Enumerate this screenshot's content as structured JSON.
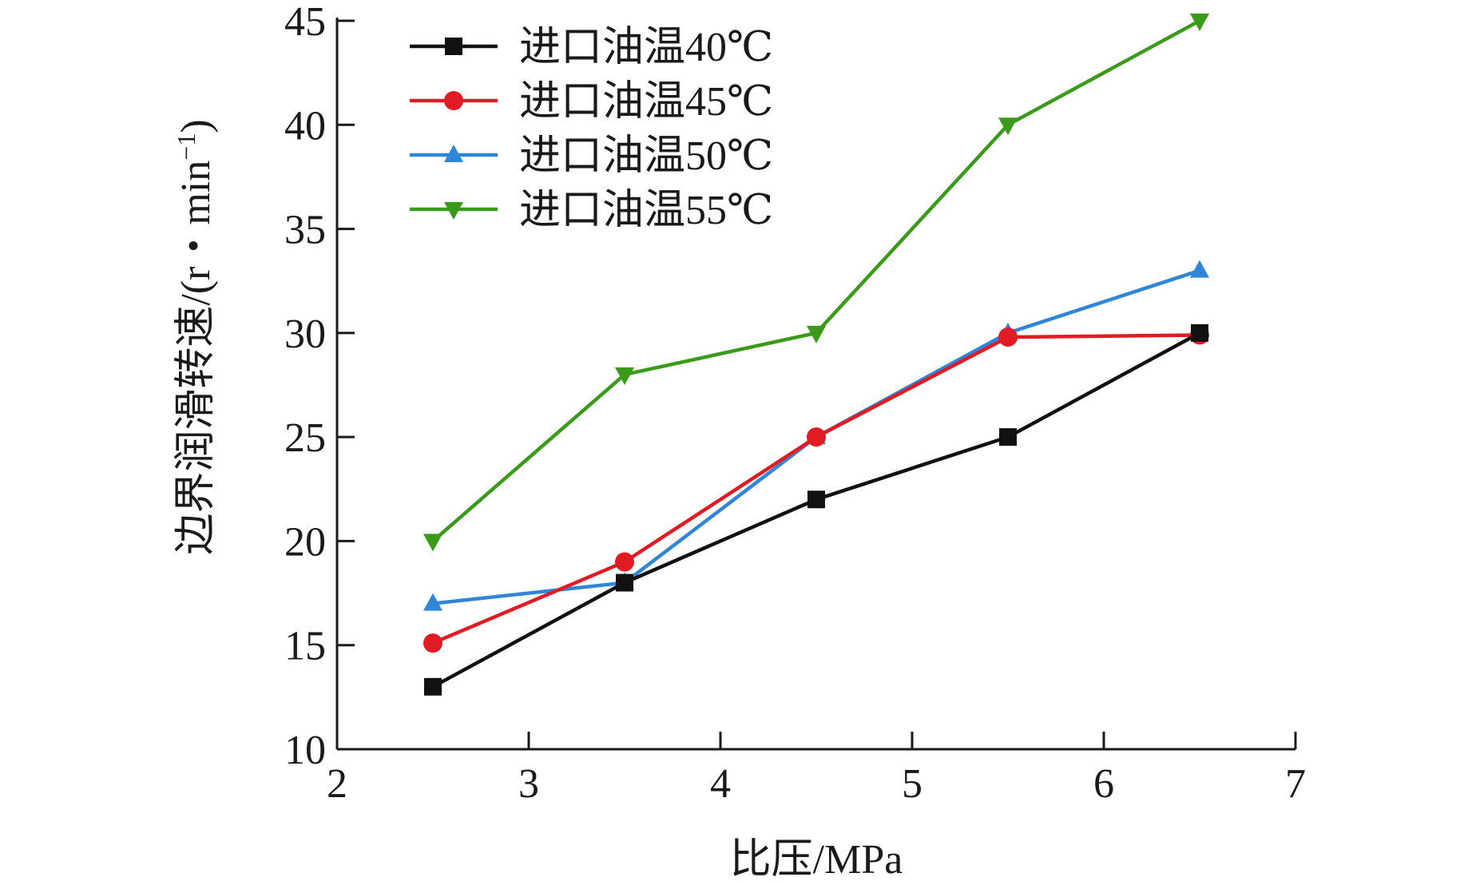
{
  "chart_data": {
    "type": "line",
    "title": "",
    "xlabel": "比压/MPa",
    "ylabel": "边界润滑转速/(r・min",
    "ylabel_sup": "−1",
    "ylabel_close": ")",
    "xlim": [
      2,
      7
    ],
    "ylim": [
      10,
      45
    ],
    "xticks": [
      "2",
      "3",
      "4",
      "5",
      "6",
      "7"
    ],
    "yticks": [
      "10",
      "15",
      "20",
      "25",
      "30",
      "35",
      "40",
      "45"
    ],
    "grid": false,
    "legend_position": "top-left",
    "x": [
      2.5,
      3.5,
      4.5,
      5.5,
      6.5
    ],
    "series": [
      {
        "name": "进口油温40℃",
        "values": [
          13,
          18,
          22,
          25,
          30
        ],
        "color": "#111111",
        "marker": "square"
      },
      {
        "name": "进口油温45℃",
        "values": [
          15.1,
          19,
          25,
          29.8,
          29.9
        ],
        "color": "#e01b24",
        "marker": "circle"
      },
      {
        "name": "进口油温50℃",
        "values": [
          17,
          18,
          25,
          30,
          33
        ],
        "color": "#2f86d6",
        "marker": "triangle-up"
      },
      {
        "name": "进口油温55℃",
        "values": [
          20,
          28,
          30,
          40,
          45
        ],
        "color": "#3a9a1a",
        "marker": "triangle-down"
      }
    ]
  }
}
